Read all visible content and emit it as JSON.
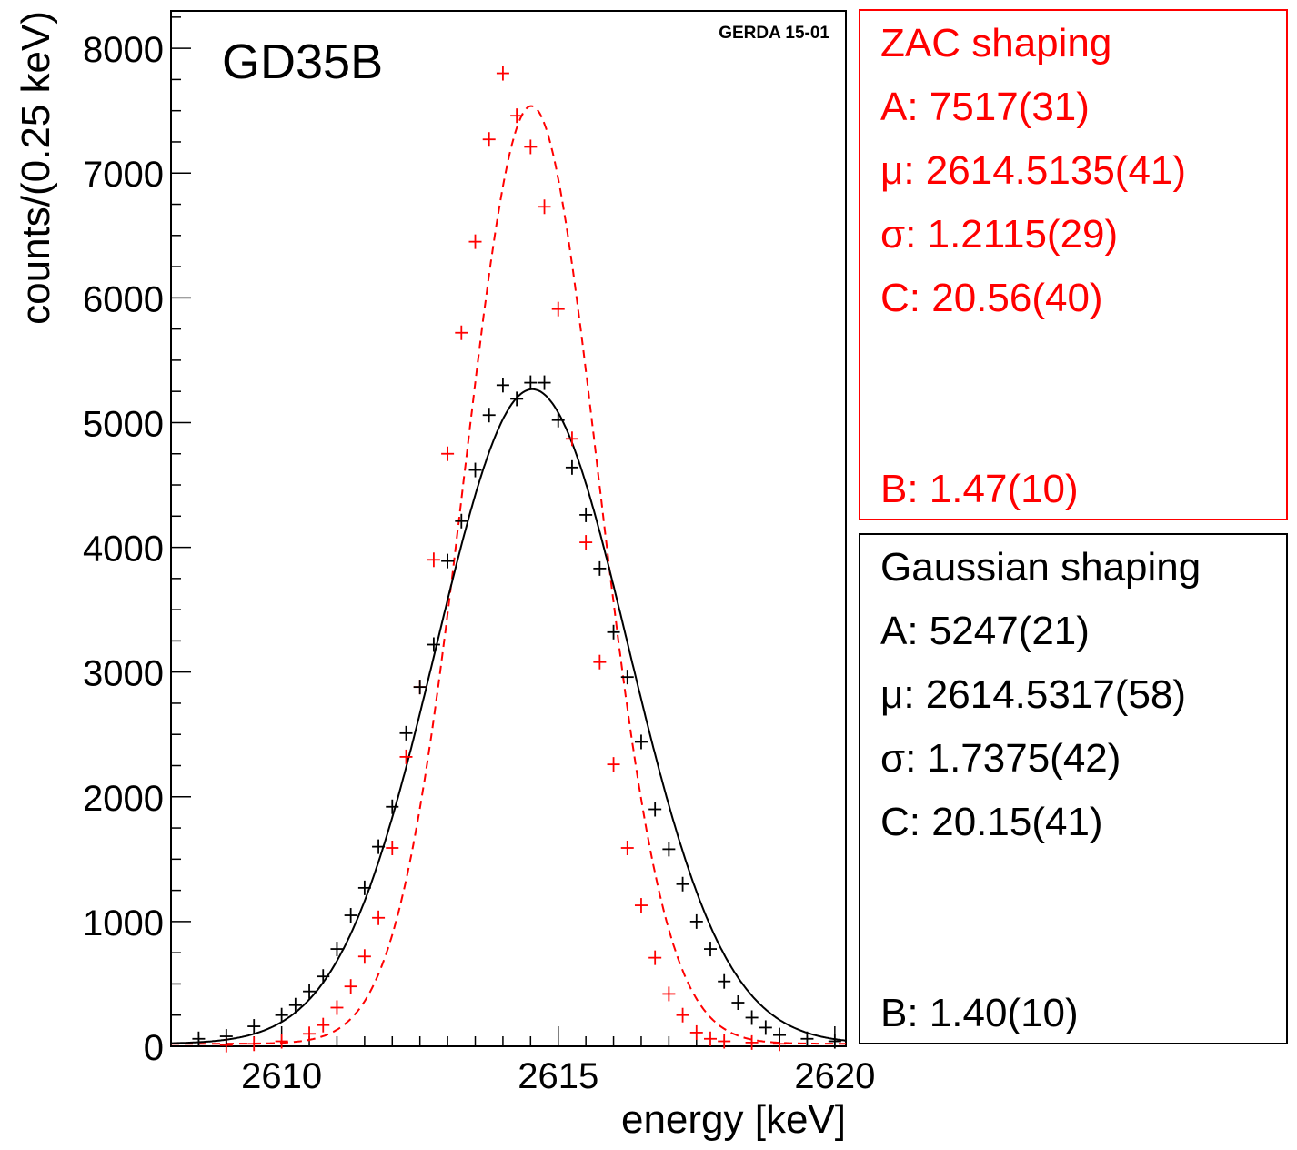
{
  "chart_data": {
    "type": "scatter",
    "title": "GD35B",
    "label": "GERDA 15-01",
    "xlabel": "energy [keV]",
    "ylabel": "counts/(0.25 keV)",
    "xlim": [
      2608,
      2620.2
    ],
    "ylim": [
      0,
      8300
    ],
    "xticks": [
      2610,
      2615,
      2620
    ],
    "yticks": [
      0,
      1000,
      2000,
      3000,
      4000,
      5000,
      6000,
      7000,
      8000
    ],
    "colors": {
      "zac": "#ff0000",
      "gauss": "#000000"
    },
    "series": [
      {
        "name": "ZAC shaping",
        "color": "#ff0000",
        "line_style": "dashed",
        "x": [
          2609.0,
          2609.5,
          2610.0,
          2610.5,
          2610.75,
          2611.0,
          2611.25,
          2611.5,
          2611.75,
          2612.0,
          2612.25,
          2612.5,
          2612.75,
          2613.0,
          2613.25,
          2613.5,
          2613.75,
          2614.0,
          2614.25,
          2614.5,
          2614.75,
          2615.0,
          2615.25,
          2615.5,
          2615.75,
          2616.0,
          2616.25,
          2616.5,
          2616.75,
          2617.0,
          2617.25,
          2617.5,
          2617.75,
          2618.0,
          2618.5,
          2619.0
        ],
        "y": [
          10,
          20,
          40,
          100,
          170,
          310,
          480,
          720,
          1030,
          1590,
          2320,
          2880,
          3900,
          4750,
          5720,
          6450,
          7270,
          7800,
          7460,
          7210,
          6730,
          5910,
          4870,
          4040,
          3080,
          2260,
          1590,
          1130,
          710,
          420,
          250,
          110,
          60,
          40,
          30,
          20
        ]
      },
      {
        "name": "Gaussian shaping",
        "color": "#000000",
        "line_style": "solid",
        "x": [
          2608.5,
          2609.0,
          2609.5,
          2610.0,
          2610.25,
          2610.5,
          2610.75,
          2611.0,
          2611.25,
          2611.5,
          2611.75,
          2612.0,
          2612.25,
          2612.5,
          2612.75,
          2613.0,
          2613.25,
          2613.5,
          2613.75,
          2614.0,
          2614.25,
          2614.5,
          2614.75,
          2615.0,
          2615.25,
          2615.5,
          2615.75,
          2616.0,
          2616.25,
          2616.5,
          2616.75,
          2617.0,
          2617.25,
          2617.5,
          2617.75,
          2618.0,
          2618.25,
          2618.5,
          2618.75,
          2619.0,
          2619.5,
          2620.0
        ],
        "y": [
          60,
          80,
          160,
          250,
          330,
          440,
          560,
          780,
          1050,
          1270,
          1600,
          1920,
          2510,
          2880,
          3220,
          3890,
          4210,
          4620,
          5060,
          5300,
          5190,
          5320,
          5320,
          5020,
          4640,
          4260,
          3830,
          3320,
          2960,
          2440,
          1900,
          1580,
          1300,
          1000,
          780,
          520,
          350,
          230,
          150,
          90,
          60,
          40
        ]
      }
    ],
    "fits": [
      {
        "name": "ZAC shaping",
        "A": 7517,
        "mu": 2614.5135,
        "sigma": 1.2115,
        "C": 20.56
      },
      {
        "name": "Gaussian shaping",
        "A": 5247,
        "mu": 2614.5317,
        "sigma": 1.7375,
        "C": 20.15
      }
    ]
  },
  "legend": {
    "zac": {
      "title": "ZAC shaping",
      "A": "A: 7517(31)",
      "mu": "μ: 2614.5135(41)",
      "sigma": "σ: 1.2115(29)",
      "C": "C: 20.56(40)",
      "B": "B: 1.47(10)"
    },
    "gauss": {
      "title": "Gaussian shaping",
      "A": "A: 5247(21)",
      "mu": "μ: 2614.5317(58)",
      "sigma": "σ: 1.7375(42)",
      "C": "C: 20.15(41)",
      "B": "B: 1.40(10)"
    }
  }
}
